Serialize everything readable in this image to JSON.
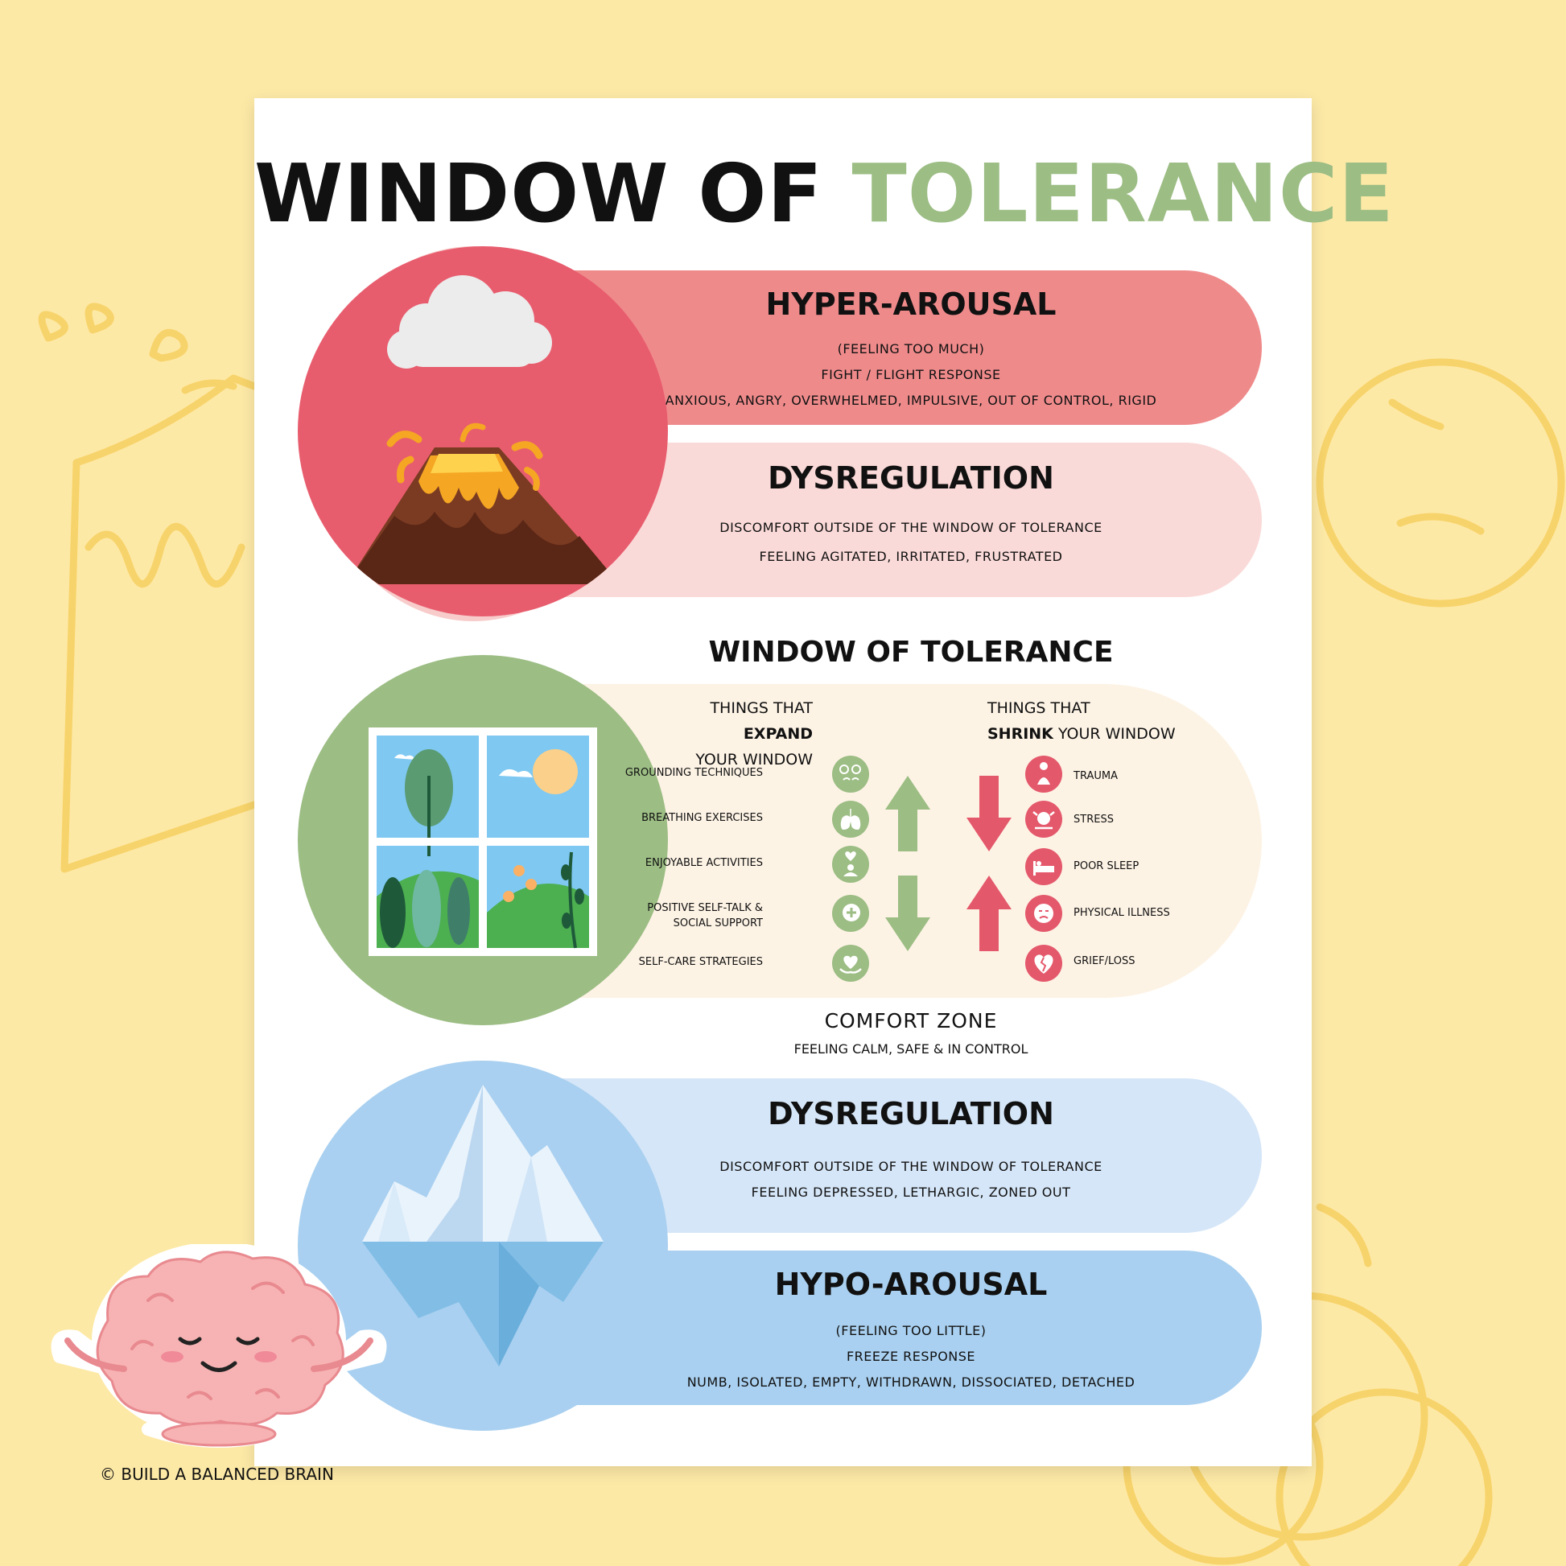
{
  "title": {
    "part1": "WINDOW OF",
    "part2": "TOLERANCE"
  },
  "hyper": {
    "heading": "HYPER-AROUSAL",
    "lines": [
      "(FEELING TOO MUCH)",
      "FIGHT / FLIGHT RESPONSE",
      "ANXIOUS, ANGRY, OVERWHELMED, IMPULSIVE, OUT OF CONTROL, RIGID"
    ]
  },
  "dys_top": {
    "heading": "DYSREGULATION",
    "lines": [
      "DISCOMFORT OUTSIDE OF THE WINDOW OF TOLERANCE",
      "FEELING AGITATED, IRRITATED, FRUSTRATED"
    ]
  },
  "window": {
    "heading": "WINDOW OF TOLERANCE",
    "expand": {
      "pre": "THINGS THAT ",
      "bold": "EXPAND",
      "post": "YOUR WINDOW"
    },
    "shrink": {
      "pre": "THINGS THAT",
      "bold": "SHRINK",
      "post": " YOUR WINDOW"
    },
    "expand_items": [
      "GROUNDING TECHNIQUES",
      "BREATHING EXERCISES",
      "ENJOYABLE ACTIVITIES",
      "POSITIVE SELF-TALK &",
      "SOCIAL SUPPORT",
      "SELF-CARE STRATEGIES"
    ],
    "shrink_items": [
      "TRAUMA",
      "STRESS",
      "POOR SLEEP",
      "PHYSICAL ILLNESS",
      "GRIEF/LOSS"
    ]
  },
  "comfort": {
    "title": "COMFORT ZONE",
    "sub": "FEELING CALM, SAFE & IN CONTROL"
  },
  "dys_bottom": {
    "heading": "DYSREGULATION",
    "lines": [
      "DISCOMFORT OUTSIDE OF THE WINDOW OF TOLERANCE",
      "FEELING DEPRESSED, LETHARGIC, ZONED OUT"
    ]
  },
  "hypo": {
    "heading": "HYPO-AROUSAL",
    "lines": [
      "(FEELING TOO LITTLE)",
      "FREEZE RESPONSE",
      "NUMB, ISOLATED, EMPTY, WITHDRAWN, DISSOCIATED, DETACHED"
    ]
  },
  "copyright": "© BUILD A BALANCED BRAIN",
  "colors": {
    "background": "#fde9a6",
    "hyper": "#ef8a8b",
    "dys_top": "#fadad8",
    "window_band": "#fdf3e5",
    "dys_bottom": "#d5e6f8",
    "hypo": "#a9d0f0",
    "green": "#9cbd84",
    "red": "#e4586b"
  }
}
